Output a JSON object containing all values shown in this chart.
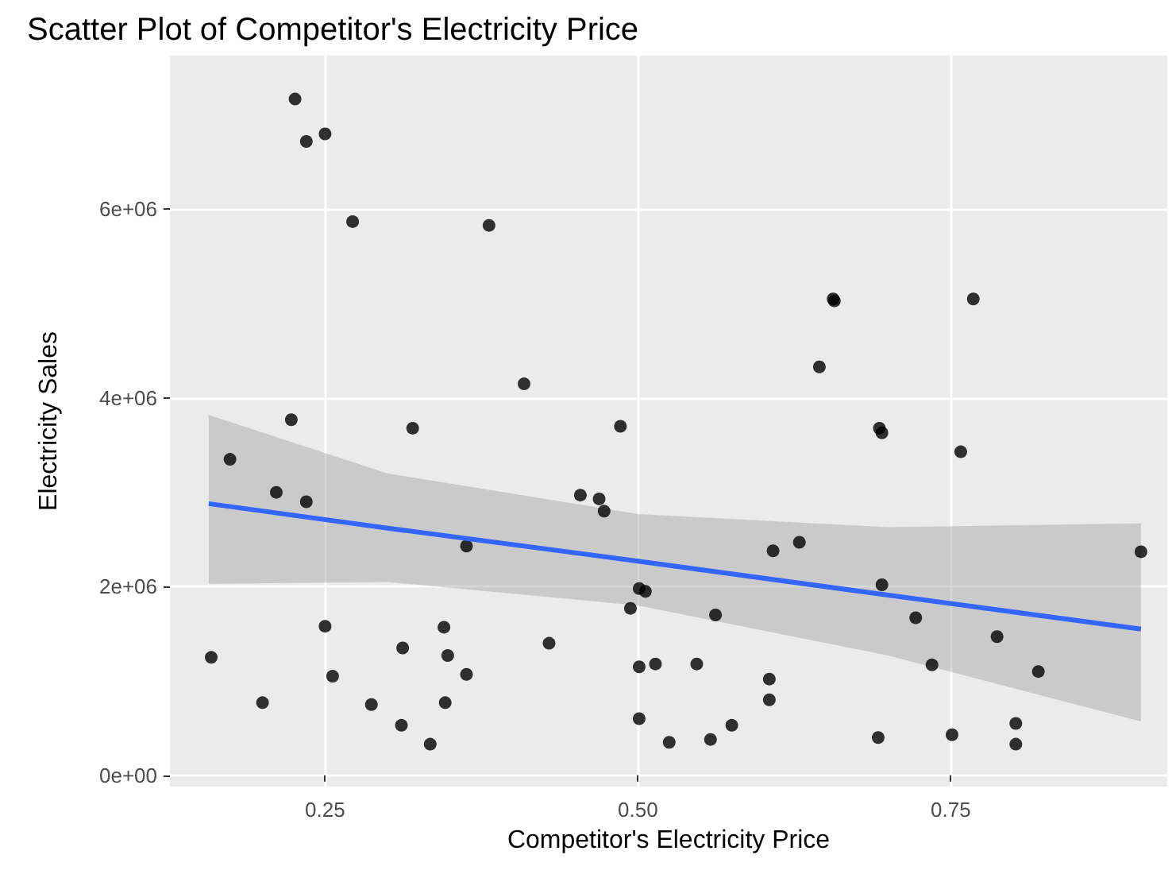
{
  "chart_data": {
    "type": "scatter",
    "title": "Scatter Plot of Competitor's Electricity Price",
    "xlabel": "Competitor's Electricity Price",
    "ylabel": "Electricity Sales",
    "xlim": [
      0.126,
      0.923
    ],
    "xticks": [
      {
        "value": 0.25,
        "label": "0.25"
      },
      {
        "value": 0.5,
        "label": "0.50"
      },
      {
        "value": 0.75,
        "label": "0.75"
      }
    ],
    "ylim": [
      -120000,
      7630000
    ],
    "yticks": [
      {
        "value": 0,
        "label": "0e+00"
      },
      {
        "value": 2000000,
        "label": "2e+06"
      },
      {
        "value": 4000000,
        "label": "4e+06"
      },
      {
        "value": 6000000,
        "label": "6e+06"
      }
    ],
    "grid": true,
    "marker": "circle",
    "series": [
      {
        "color": "#000000",
        "x": [
          0.226,
          0.235,
          0.25,
          0.272,
          0.381,
          0.409,
          0.223,
          0.32,
          0.486,
          0.174,
          0.211,
          0.235,
          0.363,
          0.454,
          0.469,
          0.473,
          0.501,
          0.506,
          0.494,
          0.159,
          0.2,
          0.25,
          0.256,
          0.287,
          0.312,
          0.345,
          0.348,
          0.363,
          0.346,
          0.311,
          0.334,
          0.429,
          0.501,
          0.514,
          0.501,
          0.547,
          0.562,
          0.605,
          0.605,
          0.575,
          0.558,
          0.525,
          0.693,
          0.695,
          0.758,
          0.608,
          0.629,
          0.902,
          0.695,
          0.722,
          0.787,
          0.82,
          0.735,
          0.692,
          0.751,
          0.802,
          0.802,
          0.656,
          0.657,
          0.768,
          0.645
        ],
        "values": [
          7170000,
          6720000,
          6800000,
          5870000,
          5830000,
          4150000,
          3770000,
          3680000,
          3700000,
          3350000,
          3000000,
          2900000,
          2430000,
          2970000,
          2930000,
          2800000,
          1980000,
          1950000,
          1770000,
          1250000,
          770000,
          1580000,
          1050000,
          750000,
          1350000,
          1570000,
          1270000,
          1070000,
          770000,
          530000,
          330000,
          1400000,
          1150000,
          1180000,
          600000,
          1180000,
          1700000,
          1020000,
          800000,
          530000,
          380000,
          350000,
          3680000,
          3630000,
          3430000,
          2380000,
          2470000,
          2370000,
          2020000,
          1670000,
          1470000,
          1100000,
          1170000,
          400000,
          430000,
          550000,
          330000,
          5050000,
          5030000,
          5050000,
          4330000
        ]
      },
      {
        "type": "line",
        "color": "#3366ff",
        "marker": "none",
        "x": [
          0.157,
          0.3,
          0.5,
          0.7,
          0.902
        ],
        "values": [
          2880000,
          2620000,
          2270000,
          1910000,
          1550000
        ],
        "lower": [
          2030000,
          2050000,
          1800000,
          1270000,
          570000
        ],
        "upper": [
          3820000,
          3200000,
          2770000,
          2630000,
          2670000
        ]
      }
    ]
  }
}
